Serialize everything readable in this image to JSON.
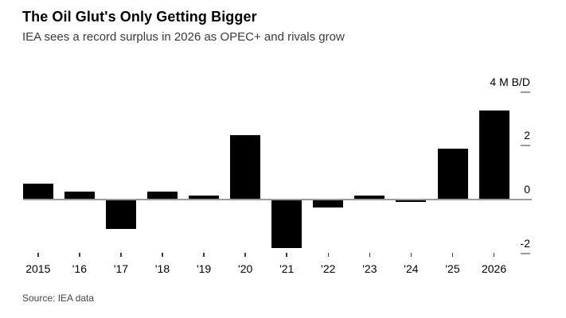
{
  "header": {
    "title": "The Oil Glut's Only Getting Bigger",
    "subtitle": "IEA sees a record surplus in 2026 as OPEC+ and rivals grow"
  },
  "chart_data": {
    "type": "bar",
    "title": "The Oil Glut's Only Getting Bigger",
    "subtitle": "IEA sees a record surplus in 2026 as OPEC+ and rivals grow",
    "unit": "M B/D",
    "categories": [
      "2015",
      "'16",
      "'17",
      "'18",
      "'19",
      "'20",
      "'21",
      "'22",
      "'23",
      "'24",
      "'25",
      "2026"
    ],
    "values": [
      0.6,
      0.3,
      -1.1,
      0.3,
      0.15,
      2.4,
      -1.8,
      -0.3,
      0.15,
      -0.1,
      1.9,
      3.3
    ],
    "y_ticks": [
      4,
      2,
      0,
      -2
    ],
    "y_tick_labels": [
      "4 M B/D",
      "2",
      "0",
      "-2"
    ],
    "ylim": [
      -2.6,
      4.4
    ],
    "grid": false,
    "legend": "none",
    "bar_color": "#000000",
    "axis_color": "#9a9a9a",
    "x_tick_color": "#3c3c3c",
    "label_color": "#000000"
  },
  "footer": {
    "source": "Source: IEA data"
  }
}
